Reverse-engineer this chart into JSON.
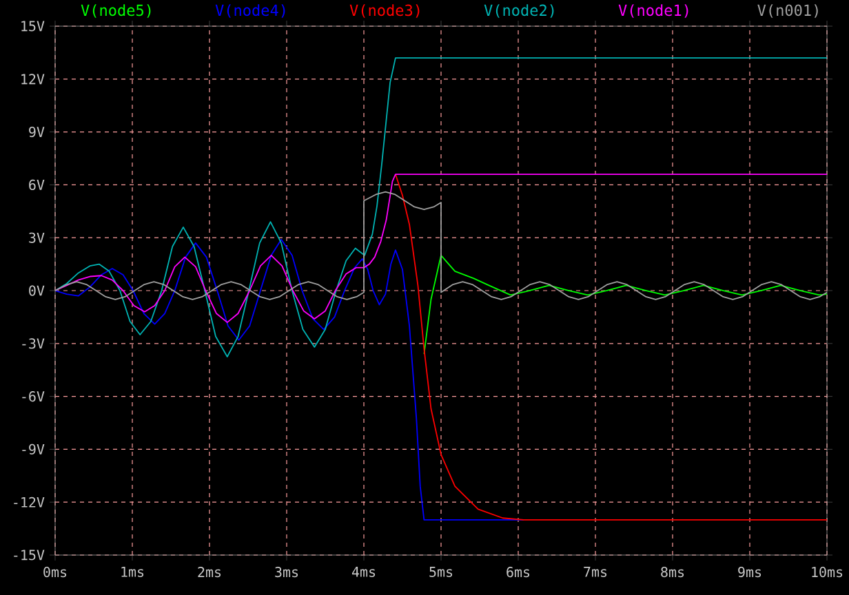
{
  "chart_data": {
    "type": "line",
    "xlim": [
      0,
      10
    ],
    "ylim": [
      -15,
      15
    ],
    "xticks": [
      {
        "value": 0,
        "label": "0ms"
      },
      {
        "value": 1,
        "label": "1ms"
      },
      {
        "value": 2,
        "label": "2ms"
      },
      {
        "value": 3,
        "label": "3ms"
      },
      {
        "value": 4,
        "label": "4ms"
      },
      {
        "value": 5,
        "label": "5ms"
      },
      {
        "value": 6,
        "label": "6ms"
      },
      {
        "value": 7,
        "label": "7ms"
      },
      {
        "value": 8,
        "label": "8ms"
      },
      {
        "value": 9,
        "label": "9ms"
      },
      {
        "value": 10,
        "label": "10ms"
      }
    ],
    "yticks": [
      {
        "value": -15,
        "label": "-15V"
      },
      {
        "value": -12,
        "label": "-12V"
      },
      {
        "value": -9,
        "label": "-9V"
      },
      {
        "value": -6,
        "label": "-6V"
      },
      {
        "value": -3,
        "label": "-3V"
      },
      {
        "value": 0,
        "label": "0V"
      },
      {
        "value": 3,
        "label": "3V"
      },
      {
        "value": 6,
        "label": "6V"
      },
      {
        "value": 9,
        "label": "9V"
      },
      {
        "value": 12,
        "label": "12V"
      },
      {
        "value": 15,
        "label": "15V"
      }
    ],
    "grid": true,
    "legend": "top",
    "marker": "none",
    "line_style": "solid",
    "series": [
      {
        "name": "V(node5)",
        "color": "#00ff00",
        "x": [
          4.78,
          4.87,
          5.0,
          5.18,
          5.42,
          5.62,
          5.9,
          6.15,
          6.4,
          6.65,
          6.9,
          7.15,
          7.4,
          7.65,
          7.9,
          8.15,
          8.4,
          8.65,
          8.9,
          9.15,
          9.4,
          9.65,
          9.9,
          10
        ],
        "values": [
          -3.6,
          -0.5,
          2.0,
          1.1,
          0.7,
          0.3,
          -0.25,
          0,
          0.3,
          0,
          -0.25,
          0,
          0.3,
          0,
          -0.25,
          0,
          0.3,
          0,
          -0.25,
          0,
          0.3,
          0,
          -0.25,
          -0.2
        ]
      },
      {
        "name": "V(node4)",
        "color": "#0000ff",
        "x": [
          0,
          0.15,
          0.3,
          0.45,
          0.6,
          0.74,
          0.88,
          1.01,
          1.15,
          1.29,
          1.42,
          1.55,
          1.69,
          1.82,
          1.96,
          2.1,
          2.24,
          2.38,
          2.52,
          2.66,
          2.8,
          2.93,
          3.07,
          3.2,
          3.34,
          3.48,
          3.62,
          3.75,
          3.88,
          3.98,
          4.05,
          4.12,
          4.2,
          4.28,
          4.35,
          4.41,
          4.5,
          4.59,
          4.68,
          4.73,
          4.78,
          6.07
        ],
        "values": [
          0,
          -0.2,
          -0.3,
          0.2,
          0.9,
          1.25,
          0.9,
          0,
          -1.3,
          -1.9,
          -1.3,
          0,
          1.9,
          2.7,
          1.9,
          0,
          -2.0,
          -2.8,
          -2.0,
          0,
          2.0,
          2.9,
          2.0,
          0,
          -1.6,
          -2.2,
          -1.5,
          0,
          1.3,
          1.8,
          1.2,
          0,
          -0.8,
          -0.2,
          1.5,
          2.3,
          1.2,
          -2.0,
          -7.2,
          -11.1,
          -13.0,
          -13.0
        ]
      },
      {
        "name": "V(node3)",
        "color": "#ff0000",
        "x": [
          4.41,
          4.5,
          4.59,
          4.7,
          4.78,
          4.87,
          5.0,
          5.18,
          5.48,
          5.8,
          6.07,
          10
        ],
        "values": [
          6.6,
          5.4,
          3.75,
          0.3,
          -3.3,
          -6.7,
          -9.3,
          -11.1,
          -12.4,
          -12.9,
          -13.0,
          -13.0
        ]
      },
      {
        "name": "V(node2)",
        "color": "#00b4b4",
        "x": [
          0,
          0.15,
          0.3,
          0.45,
          0.57,
          0.7,
          0.84,
          0.97,
          1.1,
          1.24,
          1.38,
          1.52,
          1.66,
          1.8,
          1.94,
          2.08,
          2.23,
          2.37,
          2.51,
          2.65,
          2.79,
          2.93,
          3.07,
          3.21,
          3.36,
          3.5,
          3.64,
          3.77,
          3.89,
          3.95,
          4.01,
          4.11,
          4.17,
          4.23,
          4.34,
          4.41,
          10
        ],
        "values": [
          0,
          0.4,
          1.0,
          1.4,
          1.5,
          1.1,
          0,
          -1.75,
          -2.5,
          -1.75,
          0,
          2.5,
          3.6,
          2.5,
          0,
          -2.6,
          -3.75,
          -2.6,
          0,
          2.7,
          3.9,
          2.7,
          0,
          -2.2,
          -3.2,
          -2.2,
          0,
          1.7,
          2.4,
          2.2,
          2.0,
          3.2,
          4.8,
          7.1,
          11.8,
          13.2,
          13.2
        ]
      },
      {
        "name": "V(node1)",
        "color": "#ff00ff",
        "x": [
          0,
          0.15,
          0.3,
          0.45,
          0.6,
          0.74,
          0.88,
          1.02,
          1.16,
          1.29,
          1.42,
          1.55,
          1.68,
          1.82,
          1.95,
          2.09,
          2.23,
          2.37,
          2.52,
          2.66,
          2.8,
          2.94,
          3.08,
          3.22,
          3.36,
          3.5,
          3.63,
          3.77,
          3.9,
          4.0,
          4.07,
          4.14,
          4.22,
          4.29,
          4.37,
          4.41,
          10
        ],
        "values": [
          0,
          0.3,
          0.6,
          0.8,
          0.85,
          0.6,
          0,
          -0.85,
          -1.2,
          -0.85,
          0,
          1.35,
          1.9,
          1.35,
          0,
          -1.3,
          -1.8,
          -1.3,
          0,
          1.4,
          2.0,
          1.4,
          0,
          -1.15,
          -1.6,
          -1.15,
          0,
          0.95,
          1.3,
          1.3,
          1.5,
          1.9,
          2.8,
          4.0,
          6.2,
          6.6,
          6.6
        ]
      },
      {
        "name": "V(n001)",
        "color": "#a0a0a0",
        "x": [
          0,
          0.155,
          0.28,
          0.405,
          0.53,
          0.655,
          0.78,
          0.905,
          1.03,
          1.155,
          1.28,
          1.405,
          1.53,
          1.655,
          1.78,
          1.905,
          2.03,
          2.155,
          2.28,
          2.405,
          2.53,
          2.655,
          2.78,
          2.905,
          3.03,
          3.155,
          3.28,
          3.405,
          3.53,
          3.655,
          3.78,
          3.905,
          4.0,
          4.0,
          4.155,
          4.28,
          4.405,
          4.53,
          4.655,
          4.78,
          4.905,
          5.0,
          5.0,
          5.155,
          5.28,
          5.405,
          5.53,
          5.655,
          5.78,
          5.905,
          6.03,
          6.155,
          6.28,
          6.405,
          6.53,
          6.655,
          6.78,
          6.905,
          7.03,
          7.155,
          7.28,
          7.405,
          7.53,
          7.655,
          7.78,
          7.905,
          8.03,
          8.155,
          8.28,
          8.405,
          8.53,
          8.655,
          8.78,
          8.905,
          9.03,
          9.155,
          9.28,
          9.405,
          9.53,
          9.655,
          9.78,
          9.905,
          10
        ],
        "values": [
          0,
          0.35,
          0.5,
          0.35,
          0,
          -0.35,
          -0.5,
          -0.35,
          0,
          0.35,
          0.5,
          0.35,
          0,
          -0.35,
          -0.5,
          -0.35,
          0,
          0.35,
          0.5,
          0.35,
          0,
          -0.35,
          -0.5,
          -0.35,
          0,
          0.35,
          0.5,
          0.35,
          0,
          -0.35,
          -0.5,
          -0.35,
          -0.1,
          5.1,
          5.45,
          5.6,
          5.45,
          5.1,
          4.75,
          4.6,
          4.75,
          5.0,
          -0.1,
          0.35,
          0.5,
          0.35,
          0,
          -0.35,
          -0.5,
          -0.35,
          0,
          0.35,
          0.5,
          0.35,
          0,
          -0.35,
          -0.5,
          -0.35,
          0,
          0.35,
          0.5,
          0.35,
          0,
          -0.35,
          -0.5,
          -0.35,
          0,
          0.35,
          0.5,
          0.35,
          0,
          -0.35,
          -0.5,
          -0.35,
          0,
          0.35,
          0.5,
          0.35,
          0,
          -0.35,
          -0.5,
          -0.35,
          -0.1
        ]
      }
    ]
  }
}
